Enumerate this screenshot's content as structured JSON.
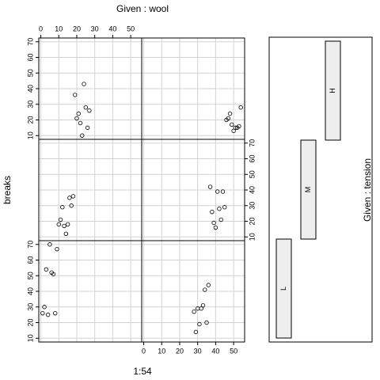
{
  "chart_data": {
    "type": "scatter",
    "ylabel": "breaks",
    "xlabel": "1:54",
    "top_label": "Given : wool",
    "right_label": "Given : tension",
    "tension_levels": [
      "L",
      "M",
      "H"
    ],
    "xlim": [
      -1.12,
      56.12
    ],
    "ylim": [
      7.6,
      72.4
    ],
    "xticks": [
      0,
      10,
      20,
      30,
      40,
      50
    ],
    "yticks": [
      10,
      20,
      30,
      40,
      50,
      60,
      70
    ],
    "grid": true,
    "series": [
      {
        "x": [
          1,
          2,
          3,
          4,
          5,
          6,
          7,
          8,
          9
        ],
        "values": [
          26,
          30,
          54,
          25,
          70,
          52,
          51,
          26,
          67
        ]
      },
      {
        "x": [
          10,
          11,
          12,
          13,
          14,
          15,
          16,
          17,
          18
        ],
        "values": [
          18,
          21,
          29,
          17,
          12,
          18,
          35,
          30,
          36
        ]
      },
      {
        "x": [
          19,
          20,
          21,
          22,
          23,
          24,
          25,
          26,
          27
        ],
        "values": [
          36,
          21,
          24,
          18,
          10,
          43,
          28,
          15,
          26
        ]
      },
      {
        "x": [
          28,
          29,
          30,
          31,
          32,
          33,
          34,
          35,
          36
        ],
        "values": [
          27,
          14,
          29,
          19,
          29,
          31,
          41,
          20,
          44
        ]
      },
      {
        "x": [
          37,
          38,
          39,
          40,
          41,
          42,
          43,
          44,
          45
        ],
        "values": [
          42,
          26,
          19,
          16,
          39,
          28,
          21,
          39,
          29
        ]
      },
      {
        "x": [
          46,
          47,
          48,
          49,
          50,
          51,
          52,
          53,
          54
        ],
        "values": [
          20,
          21,
          24,
          17,
          13,
          15,
          15,
          16,
          28
        ]
      }
    ]
  }
}
